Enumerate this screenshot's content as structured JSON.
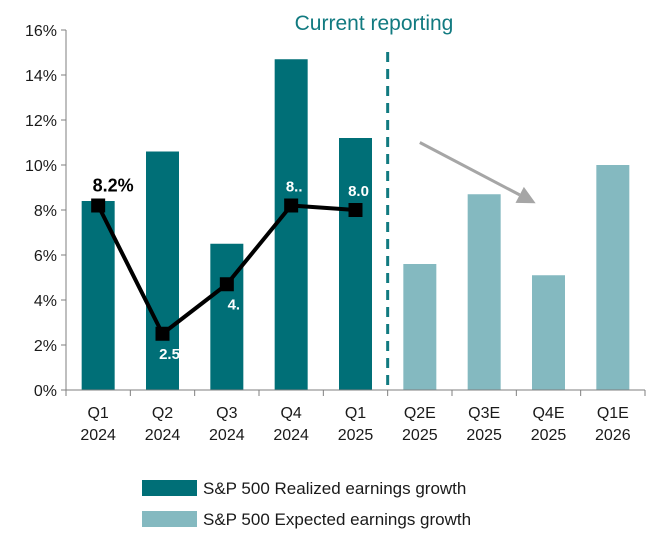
{
  "chart_data": {
    "type": "bar",
    "title": "",
    "xlabel": "",
    "ylabel": "",
    "ylim": [
      0,
      16
    ],
    "yticks": [
      "0%",
      "2%",
      "4%",
      "6%",
      "8%",
      "10%",
      "12%",
      "14%",
      "16%"
    ],
    "categories": [
      [
        "Q1",
        "2024"
      ],
      [
        "Q2",
        "2024"
      ],
      [
        "Q3",
        "2024"
      ],
      [
        "Q4",
        "2024"
      ],
      [
        "Q1",
        "2025"
      ],
      [
        "Q2E",
        "2025"
      ],
      [
        "Q3E",
        "2025"
      ],
      [
        "Q4E",
        "2025"
      ],
      [
        "Q1E",
        "2026"
      ]
    ],
    "bars": [
      {
        "category": 0,
        "value": 8.4,
        "series": 0
      },
      {
        "category": 1,
        "value": 10.6,
        "series": 0
      },
      {
        "category": 2,
        "value": 6.5,
        "series": 0
      },
      {
        "category": 3,
        "value": 14.7,
        "series": 0
      },
      {
        "category": 4,
        "value": 11.2,
        "series": 0
      },
      {
        "category": 5,
        "value": 5.6,
        "series": 1
      },
      {
        "category": 6,
        "value": 8.7,
        "series": 1
      },
      {
        "category": 7,
        "value": 5.1,
        "series": 1
      },
      {
        "category": 8,
        "value": 10.0,
        "series": 1
      }
    ],
    "series": [
      {
        "name": "S&P 500 Realized earnings growth",
        "color": "#006f77"
      },
      {
        "name": "S&P 500 Expected earnings growth",
        "color": "#84b9c0"
      }
    ],
    "line": {
      "color": "#000000",
      "points": [
        {
          "category": 0,
          "value": 8.2,
          "label": "8.2%"
        },
        {
          "category": 1,
          "value": 2.5,
          "label": "2.5"
        },
        {
          "category": 2,
          "value": 4.7,
          "label": "4."
        },
        {
          "category": 3,
          "value": 8.2,
          "label": "8.."
        },
        {
          "category": 4,
          "value": 8.0,
          "label": "8.0"
        }
      ]
    },
    "annotation": {
      "text": "Current reporting",
      "color": "#117a80"
    },
    "divider_after_category": 4,
    "arrow": {
      "color": "#a6a6a6",
      "from": [
        5.5,
        11.0
      ],
      "to": [
        7.3,
        8.3
      ]
    },
    "grid": false,
    "legend_position": "bottom"
  }
}
